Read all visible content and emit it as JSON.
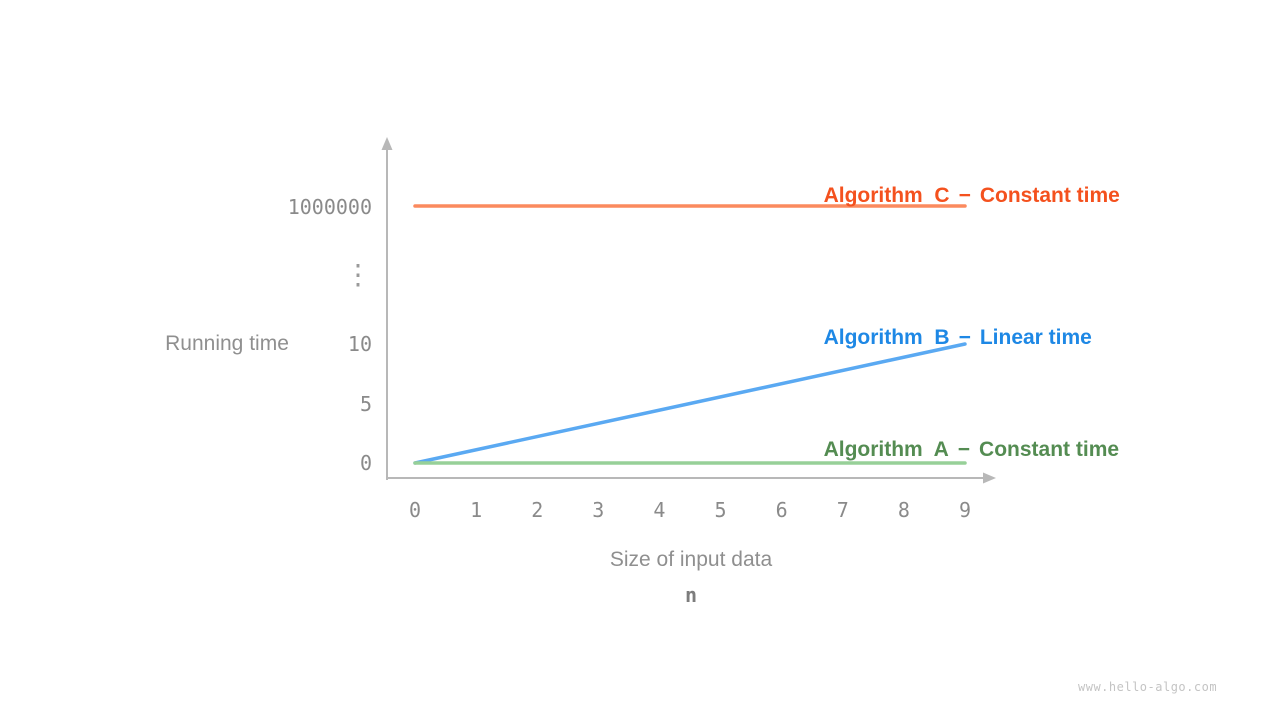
{
  "page": {
    "background": "#ffffff",
    "watermark": "www.hello-algo.com"
  },
  "chart_data": {
    "type": "line",
    "title": "",
    "xlabel": "Size of input data",
    "xlabel_symbol": "n",
    "ylabel": "Running time",
    "x_ticks": [
      "0",
      "1",
      "2",
      "3",
      "4",
      "5",
      "6",
      "7",
      "8",
      "9"
    ],
    "x_range": [
      0,
      9
    ],
    "y_tick_labels": [
      "0",
      "5",
      "10",
      "⋮",
      "1000000"
    ],
    "y_axis_break": true,
    "grid": false,
    "legend_position": "right-inline",
    "separator": "−",
    "axis_color": "#b8b8b8",
    "tick_color": "#8a8a8a",
    "series": [
      {
        "name": "Algorithm  C",
        "description": "Constant time",
        "text_color": "#f4511e",
        "line_color": "#fb8a5e",
        "points": [
          [
            0,
            1000000
          ],
          [
            9,
            1000000
          ]
        ]
      },
      {
        "name": "Algorithm  B",
        "description": "Linear time",
        "text_color": "#1e88e5",
        "line_color": "#5aa9f2",
        "points": [
          [
            0,
            0
          ],
          [
            9,
            10
          ]
        ]
      },
      {
        "name": "Algorithm  A",
        "description": "Constant time",
        "text_color": "#548c52",
        "line_color": "#97d098",
        "points": [
          [
            0,
            0
          ],
          [
            9,
            0
          ]
        ]
      }
    ]
  }
}
